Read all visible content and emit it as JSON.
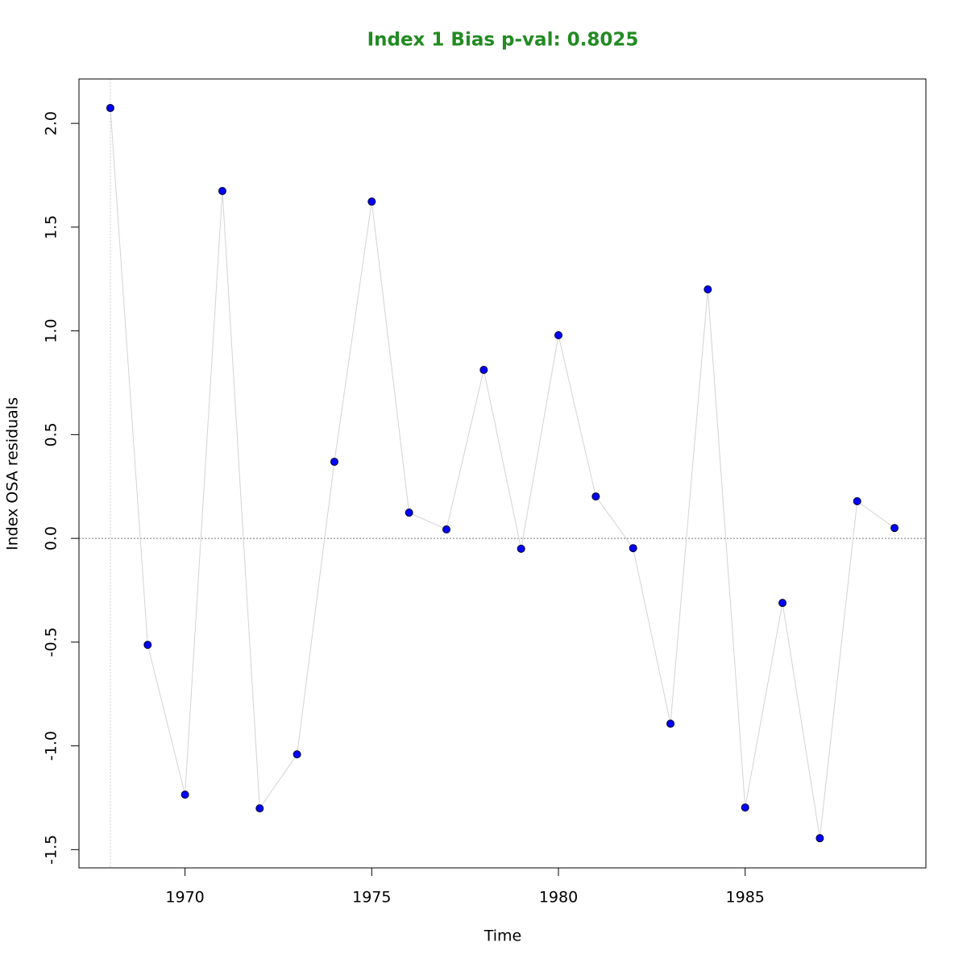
{
  "chart_data": {
    "type": "line",
    "title": "Index 1 Bias p-val: 0.8025",
    "title_color": "#228b22",
    "x_label": "Time",
    "y_label": "Index OSA residuals",
    "x": [
      1968,
      1969,
      1970,
      1971,
      1972,
      1973,
      1974,
      1975,
      1976,
      1977,
      1978,
      1979,
      1980,
      1981,
      1982,
      1983,
      1984,
      1985,
      1986,
      1987,
      1988,
      1989
    ],
    "series": [
      {
        "color": "#0000ff",
        "line_color": "#d3d3d3",
        "values": [
          2.074,
          -0.513,
          -1.235,
          1.674,
          -1.301,
          -1.041,
          0.369,
          1.623,
          0.124,
          0.043,
          0.812,
          -0.05,
          0.979,
          0.202,
          -0.047,
          -0.893,
          1.2,
          -1.297,
          -0.311,
          -1.445,
          0.179,
          0.05
        ]
      }
    ],
    "xlim": [
      1967.16,
      1989.84
    ],
    "ylim": [
      -1.588,
      2.214
    ],
    "xticks": [
      1970,
      1975,
      1980,
      1985
    ],
    "yticks": [
      -1.5,
      {
        "value": -1,
        "label": "-1.0"
      },
      -0.5,
      {
        "value": 0,
        "label": "0.0"
      },
      0.5,
      {
        "value": 1,
        "label": "1.0"
      },
      1.5,
      {
        "value": 2,
        "label": "2.0"
      }
    ],
    "hline": 0,
    "vline": 1968
  }
}
